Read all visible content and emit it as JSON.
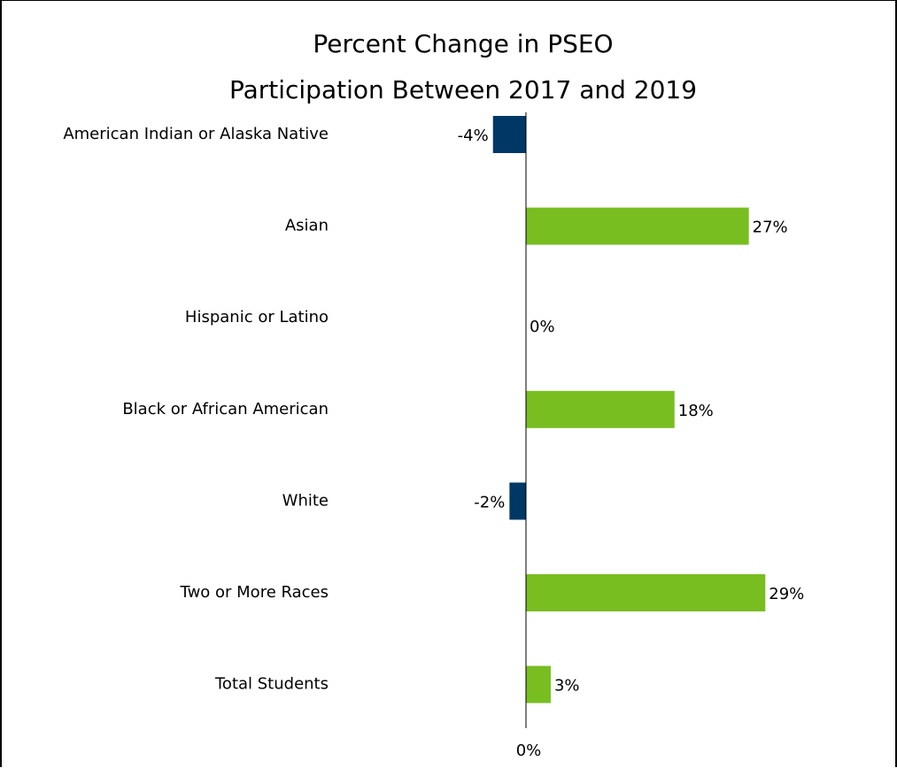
{
  "chart_data": {
    "type": "bar",
    "orientation": "horizontal",
    "title": "Percent Change in PSEO Participation Between 2017 and 2019",
    "title_lines": [
      "Percent Change in PSEO",
      "Participation Between 2017 and 2019"
    ],
    "categories": [
      "American Indian or Alaska Native",
      "Asian",
      "Hispanic or Latino",
      "Black or African American",
      "White",
      "Two or More Races",
      "Total Students"
    ],
    "values": [
      -4,
      27,
      0,
      18,
      -2,
      29,
      3
    ],
    "data_labels": [
      "-4%",
      "27%",
      "0%",
      "18%",
      "-2%",
      "29%",
      "3%"
    ],
    "x_ticks": [
      {
        "value": 0,
        "label": "0%"
      }
    ],
    "xlim": [
      -8,
      40
    ],
    "unit": "%",
    "grid": false,
    "legend": "none",
    "colors": {
      "positive": "#78BE21",
      "negative": "#003865",
      "axis": "#000000",
      "text": "#000000"
    }
  }
}
